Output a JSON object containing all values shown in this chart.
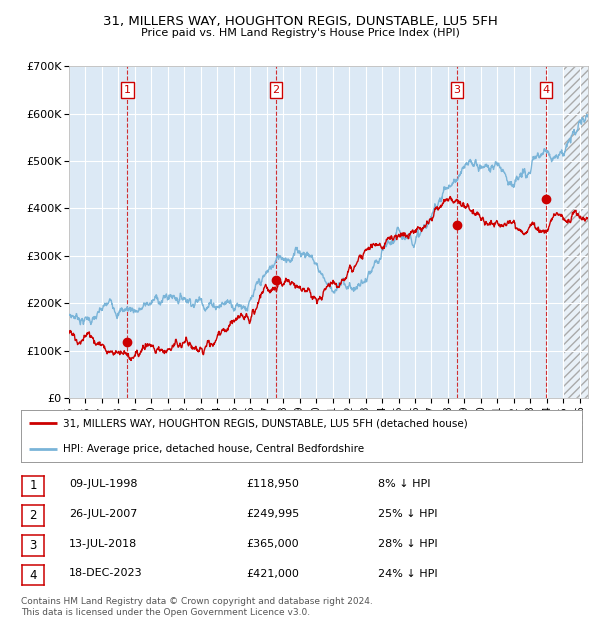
{
  "title1": "31, MILLERS WAY, HOUGHTON REGIS, DUNSTABLE, LU5 5FH",
  "title2": "Price paid vs. HM Land Registry's House Price Index (HPI)",
  "bg_color": "#dce9f5",
  "hpi_color": "#7ab4d8",
  "price_color": "#cc0000",
  "ylim": [
    0,
    700000
  ],
  "xlim_start": 1995.0,
  "xlim_end": 2026.5,
  "transactions": [
    {
      "num": 1,
      "date": "09-JUL-1998",
      "price": 118950,
      "year": 1998.54,
      "pct": "8% ↓ HPI"
    },
    {
      "num": 2,
      "date": "26-JUL-2007",
      "price": 249995,
      "year": 2007.57,
      "pct": "25% ↓ HPI"
    },
    {
      "num": 3,
      "date": "13-JUL-2018",
      "price": 365000,
      "year": 2018.54,
      "pct": "28% ↓ HPI"
    },
    {
      "num": 4,
      "date": "18-DEC-2023",
      "price": 421000,
      "year": 2023.96,
      "pct": "24% ↓ HPI"
    }
  ],
  "legend_line1": "31, MILLERS WAY, HOUGHTON REGIS, DUNSTABLE, LU5 5FH (detached house)",
  "legend_line2": "HPI: Average price, detached house, Central Bedfordshire",
  "footer1": "Contains HM Land Registry data © Crown copyright and database right 2024.",
  "footer2": "This data is licensed under the Open Government Licence v3.0."
}
